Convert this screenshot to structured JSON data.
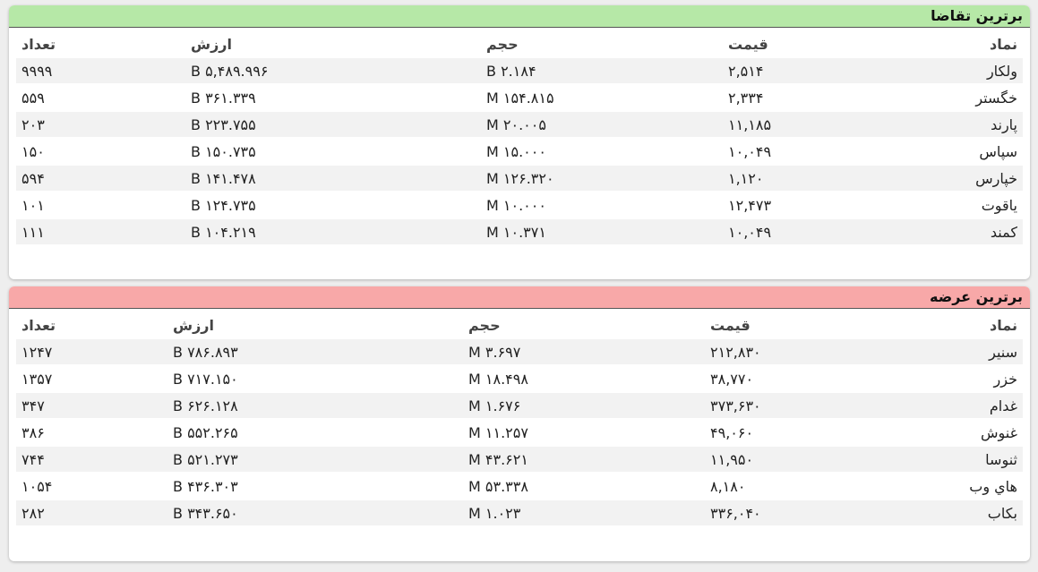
{
  "demand": {
    "title": "برترين تقاضا",
    "columns": {
      "symbol": "نماد",
      "price": "قيمت",
      "volume": "حجم",
      "value": "ارزش",
      "count": "تعداد"
    },
    "rows": [
      {
        "symbol": "ولكار",
        "price": "۲,۵۱۴",
        "volume": "۲.۱۸۴ B",
        "value": "۵,۴۸۹.۹۹۶ B",
        "count": "۹۹۹۹"
      },
      {
        "symbol": "خگستر",
        "price": "۲,۳۳۴",
        "volume": "۱۵۴.۸۱۵ M",
        "value": "۳۶۱.۳۳۹ B",
        "count": "۵۵۹"
      },
      {
        "symbol": "پارند",
        "price": "۱۱,۱۸۵",
        "volume": "۲۰.۰۰۵ M",
        "value": "۲۲۳.۷۵۵ B",
        "count": "۲۰۳"
      },
      {
        "symbol": "سپاس",
        "price": "۱۰,۰۴۹",
        "volume": "۱۵.۰۰۰ M",
        "value": "۱۵۰.۷۳۵ B",
        "count": "۱۵۰"
      },
      {
        "symbol": "خپارس",
        "price": "۱,۱۲۰",
        "volume": "۱۲۶.۳۲۰ M",
        "value": "۱۴۱.۴۷۸ B",
        "count": "۵۹۴"
      },
      {
        "symbol": "ياقوت",
        "price": "۱۲,۴۷۳",
        "volume": "۱۰.۰۰۰ M",
        "value": "۱۲۴.۷۳۵ B",
        "count": "۱۰۱"
      },
      {
        "symbol": "كمند",
        "price": "۱۰,۰۴۹",
        "volume": "۱۰.۳۷۱ M",
        "value": "۱۰۴.۲۱۹ B",
        "count": "۱۱۱"
      }
    ]
  },
  "supply": {
    "title": "برترين عرضه",
    "columns": {
      "symbol": "نماد",
      "price": "قيمت",
      "volume": "حجم",
      "value": "ارزش",
      "count": "تعداد"
    },
    "rows": [
      {
        "symbol": "سنير",
        "price": "۲۱۲,۸۳۰",
        "volume": "۳.۶۹۷ M",
        "value": "۷۸۶.۸۹۳ B",
        "count": "۱۲۴۷"
      },
      {
        "symbol": "خزر",
        "price": "۳۸,۷۷۰",
        "volume": "۱۸.۴۹۸ M",
        "value": "۷۱۷.۱۵۰ B",
        "count": "۱۳۵۷"
      },
      {
        "symbol": "غدام",
        "price": "۳۷۳,۶۳۰",
        "volume": "۱.۶۷۶ M",
        "value": "۶۲۶.۱۲۸ B",
        "count": "۳۴۷"
      },
      {
        "symbol": "غنوش",
        "price": "۴۹,۰۶۰",
        "volume": "۱۱.۲۵۷ M",
        "value": "۵۵۲.۲۶۵ B",
        "count": "۳۸۶"
      },
      {
        "symbol": "ثنوسا",
        "price": "۱۱,۹۵۰",
        "volume": "۴۳.۶۲۱ M",
        "value": "۵۲۱.۲۷۳ B",
        "count": "۷۴۴"
      },
      {
        "symbol": "هاي وب",
        "price": "۸,۱۸۰",
        "volume": "۵۳.۳۳۸ M",
        "value": "۴۳۶.۳۰۳ B",
        "count": "۱۰۵۴"
      },
      {
        "symbol": "بكاب",
        "price": "۳۳۶,۰۴۰",
        "volume": "۱.۰۲۳ M",
        "value": "۳۴۳.۶۵۰ B",
        "count": "۲۸۲"
      }
    ]
  }
}
